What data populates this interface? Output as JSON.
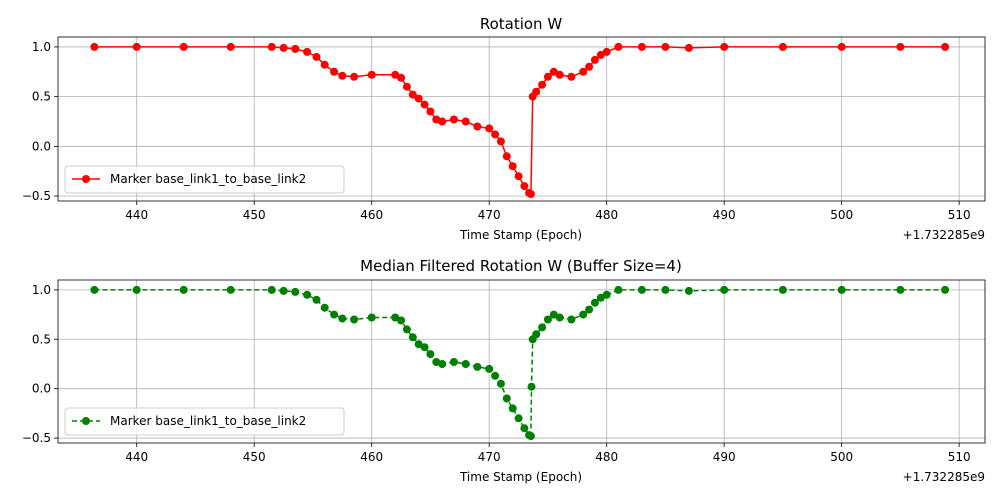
{
  "chart_data": [
    {
      "type": "line",
      "title": "Rotation W",
      "xlabel": "Time Stamp (Epoch)",
      "ylabel": "",
      "offset_label": "+1.732285e9",
      "xlim": [
        433.3,
        512.2
      ],
      "ylim": [
        -0.55,
        1.1
      ],
      "xticks": [
        "440",
        "450",
        "460",
        "470",
        "480",
        "490",
        "500",
        "510"
      ],
      "yticks": [
        "1.0",
        "0.5",
        "0.0",
        "−0.5"
      ],
      "grid": true,
      "legend_position": "lower-left",
      "series": [
        {
          "name": "Marker base_link1_to_base_link2",
          "color": "#ff0000",
          "linestyle": "solid",
          "marker": "circle",
          "x": [
            436.4,
            440,
            444,
            448,
            451.5,
            452.5,
            453.5,
            454.5,
            455.3,
            456,
            456.8,
            457.5,
            458.5,
            460,
            462,
            462.5,
            463,
            463.5,
            464,
            464.5,
            465,
            465.5,
            466,
            467,
            468,
            469,
            470,
            470.5,
            471,
            471.5,
            472,
            472.5,
            473,
            473.4,
            473.55,
            473.7,
            474,
            474.5,
            475,
            475.5,
            476,
            477,
            478,
            478.5,
            479,
            479.5,
            480,
            481,
            483,
            485,
            487,
            490,
            495,
            500,
            505,
            508.8
          ],
          "y": [
            1.0,
            1.0,
            1.0,
            1.0,
            1.0,
            0.99,
            0.98,
            0.95,
            0.9,
            0.82,
            0.75,
            0.71,
            0.7,
            0.72,
            0.72,
            0.69,
            0.6,
            0.52,
            0.48,
            0.42,
            0.35,
            0.27,
            0.25,
            0.27,
            0.25,
            0.2,
            0.18,
            0.12,
            0.05,
            -0.1,
            -0.2,
            -0.3,
            -0.4,
            -0.47,
            -0.48,
            0.5,
            0.55,
            0.62,
            0.7,
            0.75,
            0.72,
            0.7,
            0.75,
            0.8,
            0.87,
            0.92,
            0.95,
            1.0,
            1.0,
            1.0,
            0.99,
            1.0,
            1.0,
            1.0,
            1.0,
            1.0
          ]
        }
      ]
    },
    {
      "type": "line",
      "title": "Median Filtered Rotation W (Buffer Size=4)",
      "xlabel": "Time Stamp (Epoch)",
      "ylabel": "",
      "offset_label": "+1.732285e9",
      "xlim": [
        433.3,
        512.2
      ],
      "ylim": [
        -0.55,
        1.1
      ],
      "xticks": [
        "440",
        "450",
        "460",
        "470",
        "480",
        "490",
        "500",
        "510"
      ],
      "yticks": [
        "1.0",
        "0.5",
        "0.0",
        "−0.5"
      ],
      "grid": true,
      "legend_position": "lower-left",
      "series": [
        {
          "name": "Marker base_link1_to_base_link2",
          "color": "#008000",
          "linestyle": "dashed",
          "marker": "circle",
          "x": [
            436.4,
            440,
            444,
            448,
            451.5,
            452.5,
            453.5,
            454.5,
            455.3,
            456,
            456.8,
            457.5,
            458.5,
            460,
            462,
            462.5,
            463,
            463.5,
            464,
            464.5,
            465,
            465.5,
            466,
            467,
            468,
            469,
            470,
            470.5,
            471,
            471.5,
            472,
            472.5,
            473,
            473.4,
            473.55,
            473.6,
            473.7,
            474,
            474.5,
            475,
            475.5,
            476,
            477,
            478,
            478.5,
            479,
            479.5,
            480,
            481,
            483,
            485,
            487,
            490,
            495,
            500,
            505,
            508.8
          ],
          "y": [
            1.0,
            1.0,
            1.0,
            1.0,
            1.0,
            0.99,
            0.98,
            0.95,
            0.9,
            0.82,
            0.75,
            0.71,
            0.7,
            0.72,
            0.72,
            0.69,
            0.6,
            0.52,
            0.45,
            0.42,
            0.35,
            0.27,
            0.25,
            0.27,
            0.25,
            0.22,
            0.2,
            0.13,
            0.05,
            -0.1,
            -0.2,
            -0.3,
            -0.4,
            -0.47,
            -0.48,
            0.02,
            0.5,
            0.55,
            0.62,
            0.7,
            0.75,
            0.72,
            0.7,
            0.75,
            0.8,
            0.87,
            0.92,
            0.95,
            1.0,
            1.0,
            1.0,
            0.99,
            1.0,
            1.0,
            1.0,
            1.0,
            1.0
          ]
        }
      ]
    }
  ]
}
